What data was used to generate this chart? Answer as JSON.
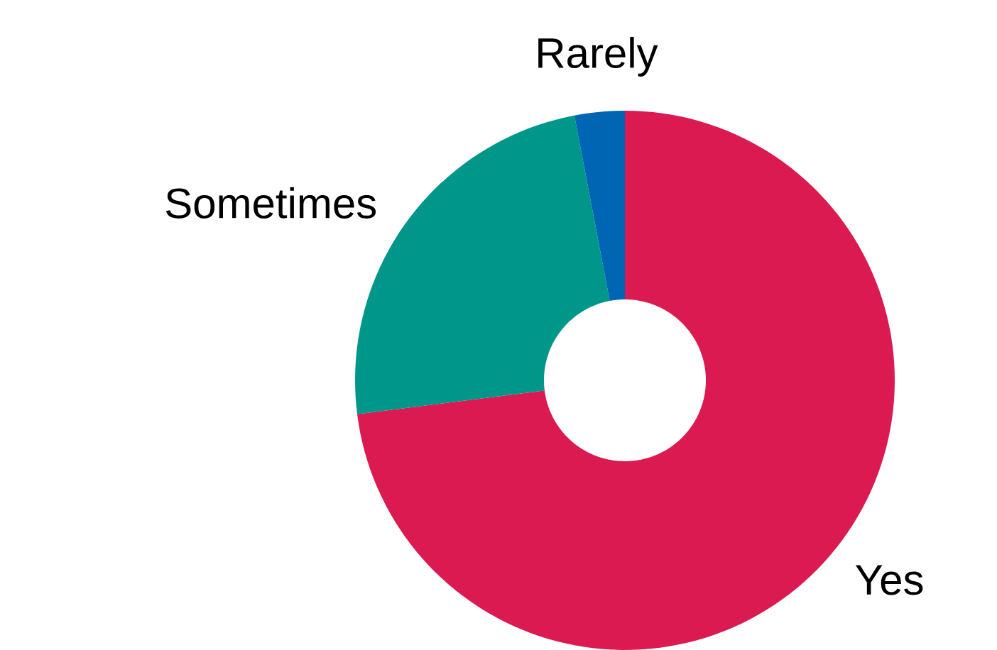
{
  "chart_data": {
    "type": "donut",
    "categories": [
      "Yes",
      "Sometimes",
      "Rarely"
    ],
    "values": [
      73,
      24,
      3
    ],
    "colors": [
      "#da1a50",
      "#00968a",
      "#0066b3"
    ]
  }
}
